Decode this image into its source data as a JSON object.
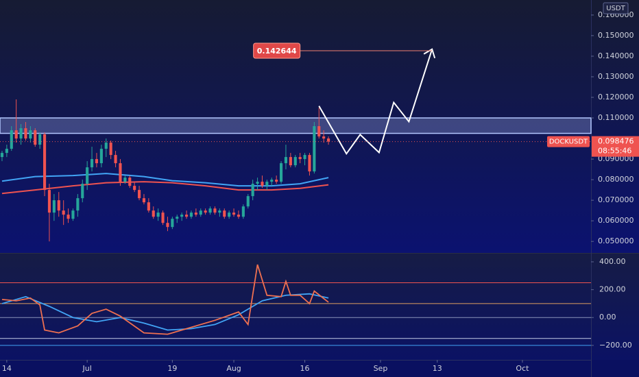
{
  "chart_data": {
    "type": "candlestick",
    "symbol": "DOCKUSDT",
    "currency": "USDT",
    "last_price": 0.098476,
    "last_price_label": "0.098476",
    "countdown": "08:55:46",
    "up_color": "#26a69a",
    "down_color": "#ef5350",
    "x": [
      0,
      1,
      2,
      3,
      4,
      5,
      6,
      7,
      8,
      9,
      10,
      11,
      12,
      13,
      14,
      15,
      16,
      17,
      18,
      19,
      20,
      21,
      22,
      23,
      24,
      25,
      26,
      27,
      28,
      29,
      30,
      31,
      32,
      33,
      34,
      35,
      36,
      37,
      38,
      39,
      40,
      41,
      42,
      43,
      44,
      45,
      46,
      47,
      48,
      49,
      50,
      51,
      52,
      53,
      54,
      55,
      56,
      57,
      58,
      59,
      60,
      61,
      62,
      63,
      64,
      65,
      66,
      67,
      68,
      69
    ],
    "candles": [
      [
        0.091,
        0.094,
        0.089,
        0.093
      ],
      [
        0.093,
        0.097,
        0.091,
        0.095
      ],
      [
        0.095,
        0.106,
        0.094,
        0.104
      ],
      [
        0.104,
        0.119,
        0.098,
        0.1
      ],
      [
        0.1,
        0.107,
        0.097,
        0.105
      ],
      [
        0.105,
        0.108,
        0.099,
        0.1
      ],
      [
        0.1,
        0.106,
        0.098,
        0.104
      ],
      [
        0.104,
        0.105,
        0.096,
        0.097
      ],
      [
        0.097,
        0.103,
        0.095,
        0.102
      ],
      [
        0.102,
        0.103,
        0.072,
        0.075
      ],
      [
        0.075,
        0.078,
        0.05,
        0.064
      ],
      [
        0.064,
        0.073,
        0.06,
        0.07
      ],
      [
        0.07,
        0.074,
        0.062,
        0.065
      ],
      [
        0.065,
        0.07,
        0.058,
        0.063
      ],
      [
        0.063,
        0.066,
        0.059,
        0.061
      ],
      [
        0.061,
        0.066,
        0.06,
        0.065
      ],
      [
        0.065,
        0.073,
        0.062,
        0.071
      ],
      [
        0.071,
        0.08,
        0.069,
        0.078
      ],
      [
        0.078,
        0.089,
        0.075,
        0.086
      ],
      [
        0.086,
        0.096,
        0.084,
        0.09
      ],
      [
        0.09,
        0.093,
        0.086,
        0.088
      ],
      [
        0.088,
        0.097,
        0.086,
        0.095
      ],
      [
        0.095,
        0.1,
        0.091,
        0.098
      ],
      [
        0.098,
        0.099,
        0.09,
        0.092
      ],
      [
        0.092,
        0.094,
        0.086,
        0.088
      ],
      [
        0.088,
        0.09,
        0.077,
        0.079
      ],
      [
        0.079,
        0.082,
        0.078,
        0.081
      ],
      [
        0.081,
        0.082,
        0.076,
        0.077
      ],
      [
        0.077,
        0.079,
        0.074,
        0.075
      ],
      [
        0.075,
        0.077,
        0.07,
        0.071
      ],
      [
        0.071,
        0.073,
        0.068,
        0.069
      ],
      [
        0.069,
        0.071,
        0.064,
        0.065
      ],
      [
        0.065,
        0.067,
        0.061,
        0.062
      ],
      [
        0.062,
        0.066,
        0.06,
        0.064
      ],
      [
        0.064,
        0.065,
        0.058,
        0.059
      ],
      [
        0.059,
        0.062,
        0.055,
        0.057
      ],
      [
        0.057,
        0.062,
        0.056,
        0.061
      ],
      [
        0.061,
        0.063,
        0.059,
        0.062
      ],
      [
        0.062,
        0.064,
        0.06,
        0.063
      ],
      [
        0.063,
        0.065,
        0.061,
        0.062
      ],
      [
        0.062,
        0.065,
        0.061,
        0.064
      ],
      [
        0.064,
        0.066,
        0.062,
        0.063
      ],
      [
        0.063,
        0.066,
        0.062,
        0.065
      ],
      [
        0.065,
        0.066,
        0.063,
        0.064
      ],
      [
        0.064,
        0.067,
        0.063,
        0.066
      ],
      [
        0.066,
        0.067,
        0.063,
        0.064
      ],
      [
        0.064,
        0.066,
        0.062,
        0.065
      ],
      [
        0.065,
        0.066,
        0.061,
        0.062
      ],
      [
        0.062,
        0.065,
        0.061,
        0.064
      ],
      [
        0.064,
        0.066,
        0.062,
        0.063
      ],
      [
        0.063,
        0.065,
        0.061,
        0.062
      ],
      [
        0.062,
        0.068,
        0.061,
        0.067
      ],
      [
        0.067,
        0.073,
        0.066,
        0.072
      ],
      [
        0.072,
        0.08,
        0.07,
        0.078
      ],
      [
        0.078,
        0.081,
        0.075,
        0.079
      ],
      [
        0.079,
        0.082,
        0.076,
        0.077
      ],
      [
        0.077,
        0.08,
        0.075,
        0.079
      ],
      [
        0.079,
        0.081,
        0.077,
        0.08
      ],
      [
        0.08,
        0.082,
        0.078,
        0.079
      ],
      [
        0.079,
        0.089,
        0.078,
        0.088
      ],
      [
        0.088,
        0.097,
        0.085,
        0.091
      ],
      [
        0.091,
        0.093,
        0.086,
        0.087
      ],
      [
        0.087,
        0.092,
        0.086,
        0.091
      ],
      [
        0.091,
        0.093,
        0.088,
        0.09
      ],
      [
        0.09,
        0.093,
        0.087,
        0.092
      ],
      [
        0.092,
        0.093,
        0.082,
        0.084
      ],
      [
        0.084,
        0.108,
        0.083,
        0.106
      ],
      [
        0.106,
        0.115,
        0.1,
        0.101
      ],
      [
        0.101,
        0.104,
        0.098,
        0.1
      ],
      [
        0.1,
        0.101,
        0.097,
        0.0985
      ]
    ],
    "moving_averages": [
      {
        "color": "#42a5f5",
        "x": [
          0,
          7,
          15,
          22,
          30,
          36,
          43,
          50,
          57,
          63,
          69
        ],
        "values": [
          0.0793,
          0.0815,
          0.082,
          0.083,
          0.0815,
          0.0795,
          0.0785,
          0.077,
          0.077,
          0.078,
          0.081
        ]
      },
      {
        "color": "#ef5350",
        "x": [
          0,
          7,
          15,
          22,
          30,
          36,
          43,
          50,
          57,
          63,
          69
        ],
        "values": [
          0.0733,
          0.075,
          0.077,
          0.0785,
          0.079,
          0.0785,
          0.077,
          0.075,
          0.075,
          0.0758,
          0.0775
        ]
      }
    ],
    "zone": [
      0.1025,
      0.11
    ],
    "zone_color": "#b3c7ff",
    "projection": {
      "color": "#ffffff",
      "x": [
        67,
        72.8,
        75.7,
        79.7,
        82.8,
        86,
        90.9
      ],
      "values": [
        0.1158,
        0.0926,
        0.1019,
        0.0932,
        0.1175,
        0.1082,
        0.1434
      ]
    },
    "target": 0.142644,
    "target_x": [
      63,
      90.9
    ],
    "xlim": [
      -0.43,
      124.5
    ],
    "xticks": [
      {
        "value": 1,
        "label": "14"
      },
      {
        "value": 18,
        "label": "Jul"
      },
      {
        "value": 36,
        "label": "19"
      },
      {
        "value": 49,
        "label": "Aug"
      },
      {
        "value": 64,
        "label": "16"
      },
      {
        "value": 80,
        "label": "Sep"
      },
      {
        "value": 92,
        "label": "13"
      },
      {
        "value": 110,
        "label": "Oct"
      }
    ],
    "ylim": [
      0.0444,
      0.1673
    ],
    "yticks": [
      {
        "value": 0.16,
        "label": "0.160000"
      },
      {
        "value": 0.15,
        "label": "0.150000"
      },
      {
        "value": 0.14,
        "label": "0.140000"
      },
      {
        "value": 0.13,
        "label": "0.130000"
      },
      {
        "value": 0.12,
        "label": "0.120000"
      },
      {
        "value": 0.11,
        "label": "0.110000"
      },
      {
        "value": 0.09,
        "label": "0.090000"
      },
      {
        "value": 0.08,
        "label": "0.080000"
      },
      {
        "value": 0.07,
        "label": "0.070000"
      },
      {
        "value": 0.06,
        "label": "0.060000"
      },
      {
        "value": 0.05,
        "label": "0.050000"
      }
    ],
    "indicator": {
      "ylim": [
        -304,
        459
      ],
      "yticks": [
        {
          "value": 400,
          "label": "400.00"
        },
        {
          "value": 200,
          "label": "200.00"
        },
        {
          "value": 0,
          "label": "0.00"
        },
        {
          "value": -200,
          "label": "−200.00"
        }
      ],
      "levels": [
        {
          "value": 250,
          "color": "#ef5350"
        },
        {
          "value": 100,
          "color": "#e0a060"
        },
        {
          "value": 0,
          "color": "#8a92b8"
        },
        {
          "value": -150,
          "color": "#c5cbe8"
        },
        {
          "value": -200,
          "color": "#42a5f5"
        }
      ],
      "series": [
        {
          "color": "#42a5f5",
          "x": [
            0,
            5,
            10,
            15,
            20,
            25,
            30,
            35,
            40,
            45,
            50,
            55,
            60,
            65,
            69
          ],
          "values": [
            100,
            150,
            80,
            0,
            -30,
            0,
            -40,
            -90,
            -80,
            -50,
            20,
            120,
            160,
            170,
            140
          ]
        },
        {
          "color": "#ef7050",
          "x": [
            0,
            3,
            6,
            8,
            9,
            12,
            16,
            19,
            22,
            25,
            30,
            35,
            40,
            45,
            50,
            52,
            54,
            56,
            59,
            60,
            61,
            63,
            65,
            66,
            69
          ],
          "values": [
            130,
            120,
            140,
            90,
            -90,
            -110,
            -60,
            30,
            60,
            10,
            -110,
            -120,
            -70,
            -20,
            40,
            -50,
            380,
            160,
            150,
            260,
            160,
            160,
            100,
            190,
            110
          ]
        }
      ]
    }
  }
}
